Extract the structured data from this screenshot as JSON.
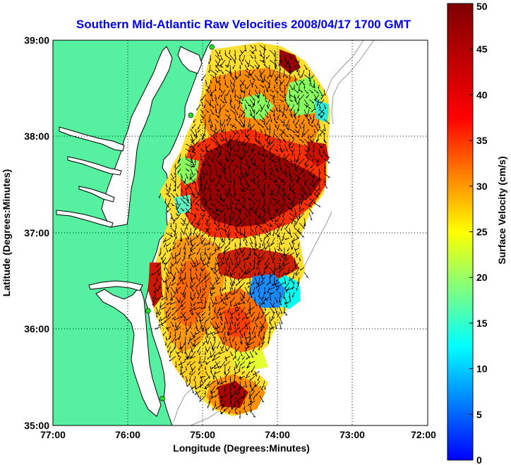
{
  "title": "Southern Mid-Atlantic Raw Velocities 2008/04/17 1700 GMT",
  "axes": {
    "xlabel": "Longitude (Degrees:Minutes)",
    "ylabel": "Latitude (Degrees:Minutes)",
    "x_ticks": [
      "77:00",
      "76:00",
      "75:00",
      "74:00",
      "73:00",
      "72:00"
    ],
    "y_ticks": [
      "39:00",
      "38:00",
      "37:00",
      "36:00",
      "35:00"
    ],
    "x_range": [
      -77,
      -72
    ],
    "y_range": [
      35,
      39
    ],
    "grid": true
  },
  "colorbar": {
    "label": "Surface Velocity (cm/s)",
    "ticks": [
      "50",
      "45",
      "40",
      "35",
      "30",
      "25",
      "20",
      "15",
      "10",
      "5",
      "0"
    ],
    "range": [
      0,
      50
    ],
    "colormap": "jet"
  },
  "colors": {
    "land": "#55f0a0",
    "water": "#ffffff",
    "title": "#0000ee",
    "station": "#22dd22",
    "bathymetry": "#999999"
  },
  "radar_stations": [
    {
      "lon": -74.88,
      "lat": 38.93
    },
    {
      "lon": -75.16,
      "lat": 38.22
    },
    {
      "lon": -75.73,
      "lat": 36.19
    },
    {
      "lon": -75.54,
      "lat": 35.28
    }
  ]
}
